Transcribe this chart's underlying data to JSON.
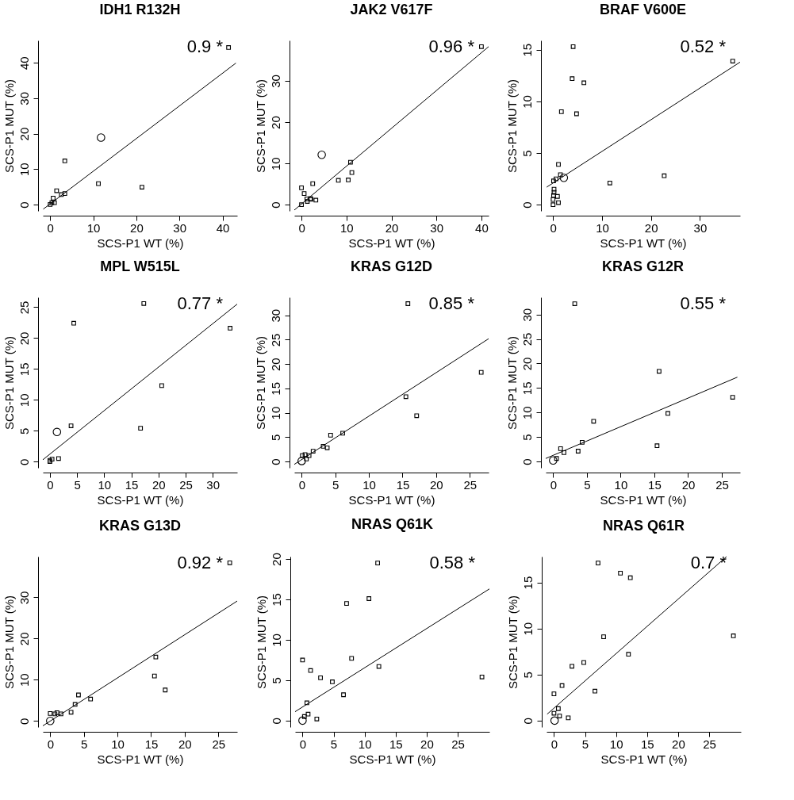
{
  "chart_data": [
    {
      "type": "scatter",
      "title": "IDH1 R132H",
      "xlabel": "SCS-P1 WT (%)",
      "ylabel": "SCS-P1 MUT (%)",
      "xlim": [
        -1.7,
        43.4
      ],
      "ylim": [
        -1.8,
        46.3
      ],
      "xticks": [
        0,
        10,
        20,
        30,
        40
      ],
      "yticks": [
        0,
        10,
        20,
        30,
        40
      ],
      "grid": false,
      "annotations": [
        "0.9 *"
      ],
      "series": [
        {
          "type": "scatter",
          "marker": "square",
          "color": "#000000",
          "x": [
            41.4,
            3.4,
            11.2,
            21.3,
            1.5,
            3.4,
            2.6,
            0.7,
            1.0,
            0.4,
            0
          ],
          "values": [
            44.3,
            12.3,
            5.9,
            4.9,
            3.9,
            3.1,
            2.8,
            1.8,
            0.5,
            0.5,
            0
          ]
        },
        {
          "type": "scatter",
          "marker": "circle",
          "color": "#000000",
          "x": [
            11.8
          ],
          "values": [
            18.9
          ]
        },
        {
          "type": "line",
          "color": "#000000",
          "x": [
            -1.6,
            43.1
          ],
          "values": [
            -1.3,
            39.9
          ]
        }
      ]
    },
    {
      "type": "scatter",
      "title": "JAK2 V617F",
      "xlabel": "SCS-P1 WT (%)",
      "ylabel": "SCS-P1 MUT (%)",
      "xlim": [
        -1.6,
        41.6
      ],
      "ylim": [
        -1.5,
        39.8
      ],
      "xticks": [
        0,
        10,
        20,
        30,
        40
      ],
      "yticks": [
        0,
        10,
        20,
        30
      ],
      "grid": false,
      "annotations": [
        "0.96 *"
      ],
      "series": [
        {
          "type": "scatter",
          "marker": "square",
          "color": "#000000",
          "x": [
            40.0,
            10.9,
            11.2,
            8.2,
            10.4,
            2.5,
            0,
            0.6,
            1.3,
            2.0,
            2.1,
            3.2,
            1.2,
            0
          ],
          "values": [
            38.3,
            10.3,
            7.8,
            5.9,
            6.0,
            5.1,
            4.1,
            2.7,
            0.8,
            1.5,
            1.3,
            1.1,
            1.4,
            0
          ]
        },
        {
          "type": "scatter",
          "marker": "circle",
          "color": "#000000",
          "x": [
            4.5
          ],
          "values": [
            12.1
          ]
        },
        {
          "type": "line",
          "color": "#000000",
          "x": [
            -1.6,
            41.6
          ],
          "values": [
            -1.3,
            38.3
          ]
        }
      ]
    },
    {
      "type": "scatter",
      "title": "BRAF V600E",
      "xlabel": "SCS-P1 WT (%)",
      "ylabel": "SCS-P1 MUT (%)",
      "xlim": [
        -1.5,
        38.2
      ],
      "ylim": [
        -0.6,
        15.9
      ],
      "xticks": [
        0,
        10,
        20,
        30
      ],
      "yticks": [
        0,
        5,
        10,
        15
      ],
      "grid": false,
      "annotations": [
        "0.52 *"
      ],
      "series": [
        {
          "type": "scatter",
          "marker": "square",
          "color": "#000000",
          "x": [
            36.7,
            4.1,
            3.9,
            6.3,
            1.7,
            4.8,
            1.1,
            1.5,
            0.6,
            0.1,
            22.7,
            11.6,
            0.2,
            0.2,
            0.1,
            0.9,
            0,
            1.1,
            0
          ],
          "values": [
            13.9,
            15.3,
            12.2,
            11.8,
            9.0,
            8.8,
            3.9,
            2.9,
            2.5,
            2.3,
            2.8,
            2.1,
            1.5,
            1.2,
            0.9,
            0.8,
            0.5,
            0.2,
            0
          ]
        },
        {
          "type": "scatter",
          "marker": "circle",
          "color": "#000000",
          "x": [
            2.2
          ],
          "values": [
            2.6
          ]
        },
        {
          "type": "line",
          "color": "#000000",
          "x": [
            -1.3,
            38.2
          ],
          "values": [
            1.7,
            13.8
          ]
        }
      ]
    },
    {
      "type": "scatter",
      "title": "MPL W515L",
      "xlabel": "SCS-P1 WT (%)",
      "ylabel": "SCS-P1 MUT (%)",
      "xlim": [
        -1.3,
        34.5
      ],
      "ylim": [
        -1.0,
        26.6
      ],
      "xticks": [
        0,
        5,
        10,
        15,
        20,
        25,
        30
      ],
      "yticks": [
        0,
        5,
        10,
        15,
        20,
        25
      ],
      "grid": false,
      "annotations": [
        "0.77 *"
      ],
      "series": [
        {
          "type": "scatter",
          "marker": "square",
          "color": "#000000",
          "x": [
            17.3,
            4.4,
            33.2,
            20.6,
            16.7,
            3.9,
            1.6,
            0.4,
            0,
            0
          ],
          "values": [
            25.6,
            22.4,
            21.6,
            12.3,
            5.4,
            5.8,
            0.5,
            0.4,
            0.2,
            0
          ]
        },
        {
          "type": "scatter",
          "marker": "circle",
          "color": "#000000",
          "x": [
            1.3
          ],
          "values": [
            4.8
          ]
        },
        {
          "type": "line",
          "color": "#000000",
          "x": [
            -1.3,
            34.5
          ],
          "values": [
            0.3,
            25.5
          ]
        }
      ]
    },
    {
      "type": "scatter",
      "title": "KRAS G12D",
      "xlabel": "SCS-P1 WT (%)",
      "ylabel": "SCS-P1 MUT (%)",
      "xlim": [
        -1.1,
        27.8
      ],
      "ylim": [
        -1.3,
        33.7
      ],
      "xticks": [
        0,
        5,
        10,
        15,
        20,
        25
      ],
      "yticks": [
        0,
        5,
        10,
        15,
        20,
        25,
        30
      ],
      "grid": false,
      "annotations": [
        "0.85 *"
      ],
      "series": [
        {
          "type": "scatter",
          "marker": "square",
          "color": "#000000",
          "x": [
            15.8,
            26.7,
            15.5,
            17.1,
            6.1,
            4.3,
            3.2,
            3.8,
            1.7,
            1.1,
            0.5,
            0.1,
            0.7
          ],
          "values": [
            32.4,
            18.3,
            13.3,
            9.4,
            5.8,
            5.4,
            3.1,
            2.8,
            2.1,
            1.2,
            1.4,
            1.2,
            0.5
          ]
        },
        {
          "type": "scatter",
          "marker": "circle",
          "color": "#000000",
          "x": [
            0
          ],
          "values": [
            0.1
          ]
        },
        {
          "type": "line",
          "color": "#000000",
          "x": [
            -1.1,
            27.8
          ],
          "values": [
            -0.6,
            25.2
          ]
        }
      ]
    },
    {
      "type": "scatter",
      "title": "KRAS G12R",
      "xlabel": "SCS-P1 WT (%)",
      "ylabel": "SCS-P1 MUT (%)",
      "xlim": [
        -1.1,
        27.7
      ],
      "ylim": [
        -1.3,
        33.5
      ],
      "xticks": [
        0,
        5,
        10,
        15,
        20,
        25
      ],
      "yticks": [
        0,
        5,
        10,
        15,
        20,
        25,
        30
      ],
      "grid": false,
      "annotations": [
        "0.55 *"
      ],
      "series": [
        {
          "type": "scatter",
          "marker": "square",
          "color": "#000000",
          "x": [
            3.2,
            15.7,
            26.6,
            17.0,
            6.0,
            4.3,
            15.4,
            1.1,
            1.6,
            3.7,
            0.5
          ],
          "values": [
            32.2,
            18.4,
            13.1,
            9.8,
            8.2,
            3.9,
            3.2,
            2.6,
            1.8,
            2.1,
            0.6
          ]
        },
        {
          "type": "scatter",
          "marker": "circle",
          "color": "#000000",
          "x": [
            0
          ],
          "values": [
            0.2
          ]
        },
        {
          "type": "line",
          "color": "#000000",
          "x": [
            -1.1,
            27.3
          ],
          "values": [
            0.6,
            17.2
          ]
        }
      ]
    },
    {
      "type": "scatter",
      "title": "KRAS G13D",
      "xlabel": "SCS-P1 WT (%)",
      "ylabel": "SCS-P1 MUT (%)",
      "xlim": [
        -1.1,
        27.8
      ],
      "ylim": [
        -1.5,
        39.9
      ],
      "xticks": [
        0,
        5,
        10,
        15,
        20,
        25
      ],
      "yticks": [
        0,
        10,
        20,
        30
      ],
      "grid": false,
      "annotations": [
        "0.92 *"
      ],
      "series": [
        {
          "type": "scatter",
          "marker": "square",
          "color": "#000000",
          "x": [
            26.7,
            15.7,
            15.5,
            17.1,
            4.2,
            6.0,
            3.7,
            3.1,
            1.6,
            1.0,
            0.7,
            0
          ],
          "values": [
            38.4,
            15.5,
            10.9,
            7.5,
            6.3,
            5.3,
            4.0,
            2.1,
            1.7,
            2.0,
            1.7,
            1.8
          ]
        },
        {
          "type": "scatter",
          "marker": "circle",
          "color": "#000000",
          "x": [
            0
          ],
          "values": [
            0
          ]
        },
        {
          "type": "line",
          "color": "#000000",
          "x": [
            -1.1,
            27.8
          ],
          "values": [
            -1.2,
            29.1
          ]
        }
      ]
    },
    {
      "type": "scatter",
      "title": "NRAS Q61K",
      "xlabel": "SCS-P1 WT (%)",
      "ylabel": "SCS-P1 MUT (%)",
      "xlim": [
        -1.2,
        30.1
      ],
      "ylim": [
        -0.8,
        20.3
      ],
      "xticks": [
        0,
        5,
        10,
        15,
        20,
        25
      ],
      "yticks": [
        0,
        5,
        10,
        15,
        20
      ],
      "grid": false,
      "annotations": [
        "0.58 *"
      ],
      "series": [
        {
          "type": "scatter",
          "marker": "square",
          "color": "#000000",
          "x": [
            12.1,
            7.1,
            10.7,
            7.9,
            0,
            1.3,
            2.9,
            4.8,
            6.6,
            12.3,
            28.9,
            0.7,
            0.9,
            2.3,
            0.3
          ],
          "values": [
            19.5,
            14.5,
            15.1,
            7.7,
            7.5,
            6.2,
            5.3,
            4.8,
            3.2,
            6.7,
            5.4,
            2.2,
            0.8,
            0.2,
            0.5
          ]
        },
        {
          "type": "scatter",
          "marker": "circle",
          "color": "#000000",
          "x": [
            0
          ],
          "values": [
            0
          ]
        },
        {
          "type": "line",
          "color": "#000000",
          "x": [
            -1.2,
            30.1
          ],
          "values": [
            1.1,
            16.3
          ]
        }
      ]
    },
    {
      "type": "scatter",
      "title": "NRAS Q61R",
      "xlabel": "SCS-P1 WT (%)",
      "ylabel": "SCS-P1 MUT (%)",
      "xlim": [
        -1.2,
        30.1
      ],
      "ylim": [
        -0.7,
        17.8
      ],
      "xticks": [
        0,
        5,
        10,
        15,
        20,
        25
      ],
      "yticks": [
        0,
        5,
        10,
        15
      ],
      "grid": false,
      "annotations": [
        "0.7 *"
      ],
      "series": [
        {
          "type": "scatter",
          "marker": "square",
          "color": "#000000",
          "x": [
            28.9,
            7.1,
            10.7,
            12.3,
            8.0,
            12.0,
            4.8,
            2.9,
            1.3,
            0,
            6.6,
            0.7,
            0,
            0.9,
            2.3
          ],
          "values": [
            9.2,
            17.1,
            16.0,
            15.5,
            9.1,
            7.2,
            6.3,
            5.9,
            3.8,
            2.9,
            3.2,
            1.3,
            0.8,
            0.5,
            0.3
          ]
        },
        {
          "type": "scatter",
          "marker": "circle",
          "color": "#000000",
          "x": [
            0.1
          ],
          "values": [
            0
          ]
        },
        {
          "type": "line",
          "color": "#000000",
          "x": [
            -1.1,
            27.8
          ],
          "values": [
            0.7,
            17.8
          ]
        }
      ]
    }
  ]
}
